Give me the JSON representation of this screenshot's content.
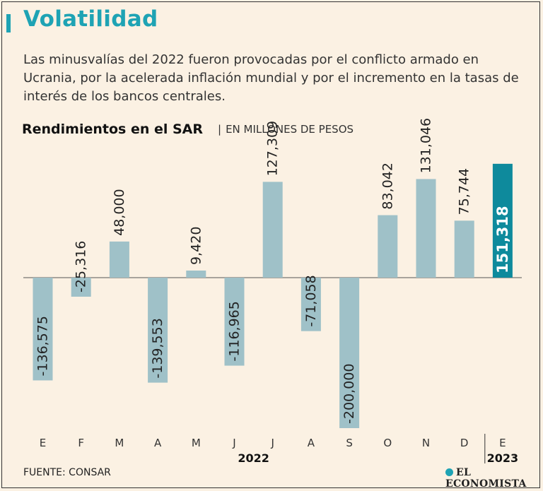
{
  "title": "Volatilidad",
  "subtitle": "Las minusvalías del 2022 fueron provocadas por el conflicto armado en Ucrania, por la acelerada inflación mundial y por el incremento en la tasas de interés de los bancos centrales.",
  "source": "FUENTE: CONSAR",
  "logo": "EL ECONOMISTA",
  "colors": {
    "accent": "#1ea3b4",
    "bar": "#9fc1c8",
    "highlight": "#0e8a9c",
    "background": "#fbf1e3"
  },
  "chart_data": {
    "type": "bar",
    "title": "Rendimientos en el SAR",
    "unit": "EN MILLONES DE PESOS",
    "categories": [
      "E",
      "F",
      "M",
      "A",
      "M",
      "J",
      "J",
      "A",
      "S",
      "O",
      "N",
      "D",
      "E"
    ],
    "values": [
      -136575,
      -25316,
      48000,
      -139553,
      9420,
      -116965,
      127309,
      -71058,
      -200000,
      83042,
      131046,
      75744,
      151318
    ],
    "labels": [
      "-136,575",
      "-25,316",
      "48,000",
      "-139,553",
      "9,420",
      "-116,965",
      "127,309",
      "-71,058",
      "-200,000",
      "83,042",
      "131,046",
      "75,744",
      "151,318"
    ],
    "highlight_index": 12,
    "years": [
      {
        "label": "2022",
        "from": 0,
        "to": 11
      },
      {
        "label": "2023",
        "from": 12,
        "to": 12
      }
    ],
    "ylim": [
      -200000,
      151318
    ]
  }
}
